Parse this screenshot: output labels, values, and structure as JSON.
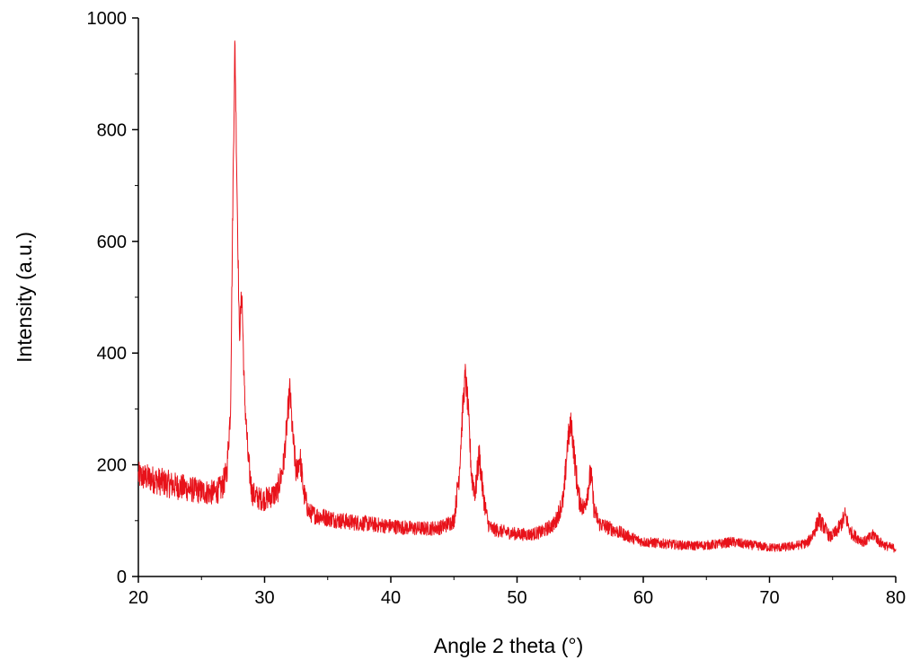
{
  "chart_data": {
    "type": "line",
    "title": "",
    "xlabel": "Angle 2 theta (°)",
    "ylabel": "Intensity (a.u.)",
    "xlim": [
      20,
      80
    ],
    "ylim": [
      0,
      1000
    ],
    "x_ticks": [
      20,
      30,
      40,
      50,
      60,
      70,
      80
    ],
    "y_ticks": [
      0,
      200,
      400,
      600,
      800,
      1000
    ],
    "x_tick_labels": [
      "20",
      "30",
      "40",
      "50",
      "60",
      "70",
      "80"
    ],
    "y_tick_labels": [
      "0",
      "200",
      "400",
      "600",
      "800",
      "1000"
    ],
    "grid": false,
    "legend": "none",
    "line_color": "#e8121a",
    "series": [
      {
        "x": [
          20,
          21,
          22,
          23,
          24,
          25,
          26,
          26.6,
          27.0,
          27.3,
          27.5,
          27.65,
          27.8,
          28.0,
          28.2,
          28.4,
          28.7,
          29.0,
          29.5,
          30.0,
          31.0,
          31.5,
          31.8,
          32.0,
          32.2,
          32.5,
          32.8,
          33.1,
          33.5,
          34,
          35,
          36,
          37,
          38,
          39,
          40,
          41,
          42,
          43,
          44,
          45,
          45.4,
          45.7,
          45.9,
          46.1,
          46.4,
          46.7,
          47.0,
          47.3,
          47.7,
          48,
          49,
          50,
          51,
          52,
          53,
          53.7,
          54.0,
          54.3,
          54.6,
          54.9,
          55.3,
          55.6,
          55.85,
          56.1,
          56.5,
          57,
          58,
          58.5,
          59,
          60,
          61,
          62,
          63,
          64,
          65,
          66,
          67,
          68,
          69,
          70,
          71,
          72,
          73,
          73.5,
          73.9,
          74.3,
          74.8,
          75.3,
          75.7,
          76.0,
          76.4,
          76.9,
          77.5,
          78.0,
          78.3,
          78.7,
          79.2,
          80
        ],
        "y": [
          180,
          175,
          168,
          162,
          157,
          152,
          150,
          158,
          185,
          300,
          700,
          960,
          720,
          430,
          510,
          330,
          210,
          150,
          140,
          138,
          150,
          200,
          280,
          335,
          260,
          185,
          215,
          150,
          115,
          110,
          105,
          100,
          97,
          95,
          92,
          90,
          88,
          86,
          86,
          88,
          100,
          180,
          300,
          360,
          310,
          180,
          150,
          220,
          150,
          95,
          85,
          80,
          76,
          75,
          80,
          95,
          140,
          240,
          275,
          200,
          140,
          120,
          155,
          185,
          120,
          95,
          90,
          80,
          75,
          70,
          62,
          60,
          58,
          56,
          55,
          56,
          58,
          62,
          58,
          55,
          52,
          52,
          55,
          60,
          78,
          102,
          90,
          70,
          80,
          95,
          110,
          80,
          70,
          62,
          70,
          75,
          62,
          55,
          50
        ],
        "noise_amplitude": 18
      }
    ]
  }
}
